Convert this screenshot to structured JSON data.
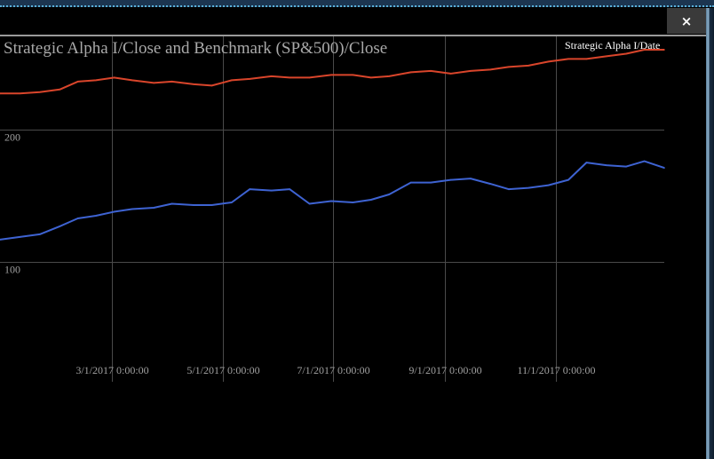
{
  "window": {
    "close_label": "×"
  },
  "chart_data": {
    "type": "line",
    "title": "Strategic Alpha I/Close and Benchmark (SP&500)/Close",
    "legend": [
      "Strategic Alpha I/Date"
    ],
    "legend_position": "top-right",
    "grid": true,
    "y_ticks": [
      "100",
      "200"
    ],
    "ylim": [
      10,
      270
    ],
    "x_ticks": [
      "3/1/2017 0:00:00",
      "5/1/2017 0:00:00",
      "7/1/2017 0:00:00",
      "9/1/2017 0:00:00",
      "11/1/2017 0:00:00"
    ],
    "x_tick_dates": [
      "2017-03-01",
      "2017-05-01",
      "2017-07-01",
      "2017-09-01",
      "2017-11-01"
    ],
    "xlim": [
      "2016-12-29",
      "2017-12-31"
    ],
    "colors": {
      "series_red": "#d9452b",
      "series_blue": "#3e63d2",
      "grid": "#4a4a4a",
      "text": "#a0a0a0"
    },
    "series": [
      {
        "color": "#d9452b",
        "x": [
          "2016-12-29",
          "2017-01-09",
          "2017-01-20",
          "2017-01-31",
          "2017-02-10",
          "2017-02-20",
          "2017-03-02",
          "2017-03-12",
          "2017-03-24",
          "2017-04-03",
          "2017-04-15",
          "2017-04-25",
          "2017-05-06",
          "2017-05-16",
          "2017-05-28",
          "2017-06-07",
          "2017-06-18",
          "2017-06-30",
          "2017-07-12",
          "2017-07-22",
          "2017-08-01",
          "2017-08-13",
          "2017-08-24",
          "2017-09-04",
          "2017-09-15",
          "2017-09-26",
          "2017-10-06",
          "2017-10-17",
          "2017-10-28",
          "2017-11-08",
          "2017-11-18",
          "2017-11-29",
          "2017-12-10",
          "2017-12-20",
          "2017-12-31"
        ],
        "values": [
          227,
          227,
          228,
          230,
          236,
          237,
          239,
          237,
          235,
          236,
          234,
          233,
          237,
          238,
          240,
          239,
          239,
          241,
          241,
          239,
          240,
          243,
          244,
          242,
          244,
          245,
          247,
          248,
          251,
          253,
          253,
          255,
          257,
          260,
          260
        ]
      },
      {
        "color": "#3e63d2",
        "x": [
          "2016-12-29",
          "2017-01-09",
          "2017-01-20",
          "2017-01-31",
          "2017-02-10",
          "2017-02-20",
          "2017-03-02",
          "2017-03-12",
          "2017-03-24",
          "2017-04-03",
          "2017-04-15",
          "2017-04-25",
          "2017-05-06",
          "2017-05-16",
          "2017-05-28",
          "2017-06-07",
          "2017-06-18",
          "2017-06-30",
          "2017-07-12",
          "2017-07-22",
          "2017-08-01",
          "2017-08-13",
          "2017-08-24",
          "2017-09-04",
          "2017-09-15",
          "2017-09-26",
          "2017-10-06",
          "2017-10-17",
          "2017-10-28",
          "2017-11-08",
          "2017-11-18",
          "2017-11-29",
          "2017-12-10",
          "2017-12-20",
          "2017-12-31"
        ],
        "values": [
          117,
          119,
          121,
          127,
          133,
          135,
          138,
          140,
          141,
          144,
          143,
          143,
          145,
          155,
          154,
          155,
          144,
          146,
          145,
          147,
          151,
          160,
          160,
          162,
          163,
          159,
          155,
          156,
          158,
          162,
          175,
          173,
          172,
          176,
          171
        ]
      }
    ]
  }
}
